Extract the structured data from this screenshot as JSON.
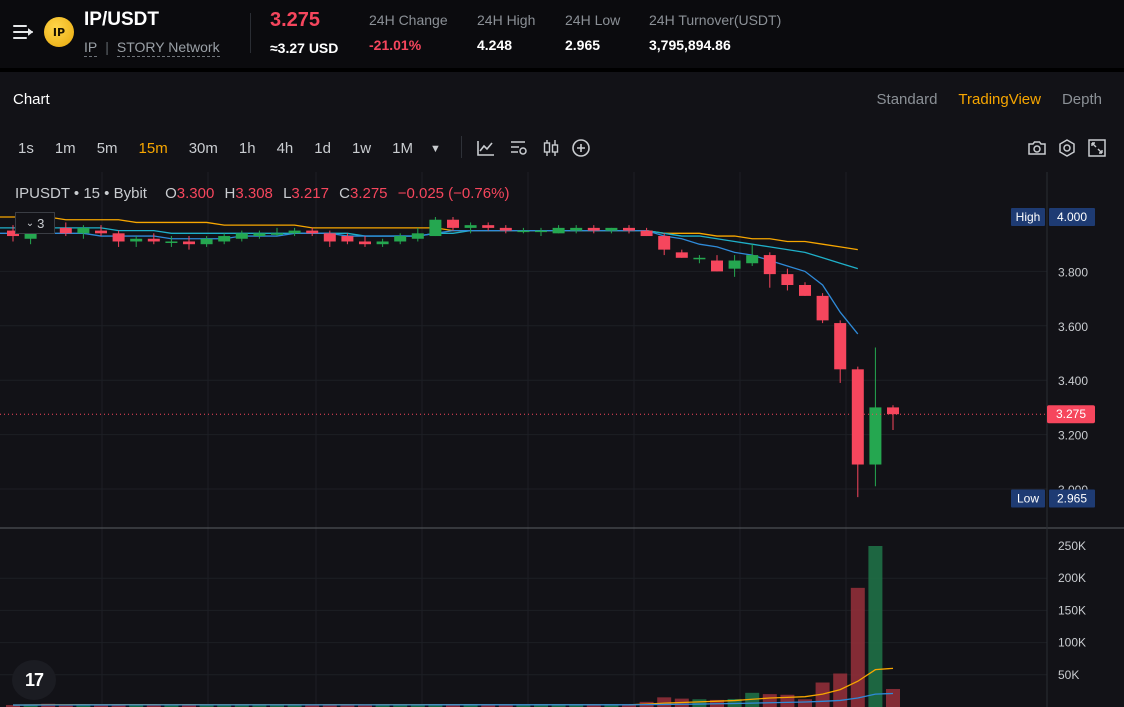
{
  "header": {
    "pair": "IP/USDT",
    "logo_text": "IP",
    "base": "IP",
    "separator": "|",
    "network": "STORY Network",
    "last_price": "3.275",
    "usd_price": "≈3.27 USD",
    "stats": [
      {
        "label": "24H Change",
        "value": "-21.01%",
        "negative": true
      },
      {
        "label": "24H High",
        "value": "4.248",
        "negative": false
      },
      {
        "label": "24H Low",
        "value": "2.965",
        "negative": false
      },
      {
        "label": "24H Turnover(USDT)",
        "value": "3,795,894.86",
        "negative": false
      }
    ]
  },
  "chart_panel": {
    "title": "Chart",
    "views": [
      "Standard",
      "TradingView",
      "Depth"
    ],
    "active_view": "TradingView",
    "intervals": [
      "1s",
      "1m",
      "5m",
      "15m",
      "30m",
      "1h",
      "4h",
      "1d",
      "1w",
      "1M"
    ],
    "active_interval": "15m",
    "tools": [
      "indicator-icon",
      "chart-settings-icon",
      "candle-style-icon",
      "add-icon",
      "camera-icon",
      "settings-hex-icon",
      "fullscreen-icon"
    ]
  },
  "legend": {
    "symbol": "IPUSDT • 15 • Bybit",
    "open_label": "O",
    "open": "3.300",
    "high_label": "H",
    "high": "3.308",
    "low_label": "L",
    "low": "3.217",
    "close_label": "C",
    "close": "3.275",
    "change": "−0.025 (−0.76%)"
  },
  "ma_toggle": {
    "label": "3"
  },
  "price_axis": {
    "ticks": [
      "4.000",
      "3.800",
      "3.600",
      "3.400",
      "3.200",
      "3.000"
    ],
    "high_tag": {
      "label": "High",
      "value": "4.000"
    },
    "low_tag": {
      "label": "Low",
      "value": "2.965"
    },
    "current": "3.275"
  },
  "volume_axis": {
    "ticks": [
      "250K",
      "200K",
      "150K",
      "100K",
      "50K"
    ]
  },
  "tv_logo": "17",
  "colors": {
    "up": "#25a750",
    "down": "#f6465d",
    "accent": "#f7a600",
    "ma_slow": "#f7a600",
    "ma_mid": "#1fb0c9",
    "ma_fast": "#2f8ad8"
  },
  "chart_data": {
    "type": "candlestick",
    "interval": "15m",
    "ylim": [
      2.95,
      4.1
    ],
    "volume_ylim": [
      0,
      250000
    ],
    "candles": [
      {
        "o": 3.95,
        "h": 3.97,
        "l": 3.91,
        "c": 3.93
      },
      {
        "o": 3.92,
        "h": 3.96,
        "l": 3.9,
        "c": 3.95
      },
      {
        "o": 3.99,
        "h": 4.0,
        "l": 3.94,
        "c": 3.96
      },
      {
        "o": 3.96,
        "h": 3.98,
        "l": 3.93,
        "c": 3.94
      },
      {
        "o": 3.94,
        "h": 3.97,
        "l": 3.92,
        "c": 3.96
      },
      {
        "o": 3.95,
        "h": 3.97,
        "l": 3.93,
        "c": 3.94
      },
      {
        "o": 3.94,
        "h": 3.95,
        "l": 3.89,
        "c": 3.91
      },
      {
        "o": 3.91,
        "h": 3.93,
        "l": 3.89,
        "c": 3.92
      },
      {
        "o": 3.92,
        "h": 3.94,
        "l": 3.9,
        "c": 3.91
      },
      {
        "o": 3.91,
        "h": 3.93,
        "l": 3.89,
        "c": 3.91
      },
      {
        "o": 3.91,
        "h": 3.93,
        "l": 3.88,
        "c": 3.9
      },
      {
        "o": 3.9,
        "h": 3.93,
        "l": 3.89,
        "c": 3.92
      },
      {
        "o": 3.91,
        "h": 3.94,
        "l": 3.9,
        "c": 3.93
      },
      {
        "o": 3.92,
        "h": 3.95,
        "l": 3.91,
        "c": 3.94
      },
      {
        "o": 3.93,
        "h": 3.95,
        "l": 3.92,
        "c": 3.94
      },
      {
        "o": 3.94,
        "h": 3.96,
        "l": 3.93,
        "c": 3.94
      },
      {
        "o": 3.94,
        "h": 3.96,
        "l": 3.93,
        "c": 3.95
      },
      {
        "o": 3.95,
        "h": 3.96,
        "l": 3.93,
        "c": 3.94
      },
      {
        "o": 3.94,
        "h": 3.95,
        "l": 3.89,
        "c": 3.91
      },
      {
        "o": 3.93,
        "h": 3.94,
        "l": 3.9,
        "c": 3.91
      },
      {
        "o": 3.91,
        "h": 3.93,
        "l": 3.89,
        "c": 3.9
      },
      {
        "o": 3.9,
        "h": 3.92,
        "l": 3.89,
        "c": 3.91
      },
      {
        "o": 3.91,
        "h": 3.94,
        "l": 3.9,
        "c": 3.93
      },
      {
        "o": 3.92,
        "h": 3.96,
        "l": 3.91,
        "c": 3.94
      },
      {
        "o": 3.93,
        "h": 4.0,
        "l": 3.93,
        "c": 3.99
      },
      {
        "o": 3.99,
        "h": 4.0,
        "l": 3.95,
        "c": 3.96
      },
      {
        "o": 3.96,
        "h": 3.98,
        "l": 3.94,
        "c": 3.97
      },
      {
        "o": 3.97,
        "h": 3.98,
        "l": 3.95,
        "c": 3.96
      },
      {
        "o": 3.96,
        "h": 3.97,
        "l": 3.94,
        "c": 3.95
      },
      {
        "o": 3.95,
        "h": 3.96,
        "l": 3.94,
        "c": 3.95
      },
      {
        "o": 3.95,
        "h": 3.96,
        "l": 3.93,
        "c": 3.95
      },
      {
        "o": 3.94,
        "h": 3.97,
        "l": 3.94,
        "c": 3.96
      },
      {
        "o": 3.95,
        "h": 3.97,
        "l": 3.94,
        "c": 3.96
      },
      {
        "o": 3.96,
        "h": 3.97,
        "l": 3.94,
        "c": 3.95
      },
      {
        "o": 3.95,
        "h": 3.96,
        "l": 3.94,
        "c": 3.96
      },
      {
        "o": 3.96,
        "h": 3.97,
        "l": 3.94,
        "c": 3.95
      },
      {
        "o": 3.95,
        "h": 3.96,
        "l": 3.93,
        "c": 3.93
      },
      {
        "o": 3.93,
        "h": 3.94,
        "l": 3.86,
        "c": 3.88
      },
      {
        "o": 3.87,
        "h": 3.88,
        "l": 3.85,
        "c": 3.85
      },
      {
        "o": 3.85,
        "h": 3.86,
        "l": 3.83,
        "c": 3.85
      },
      {
        "o": 3.84,
        "h": 3.86,
        "l": 3.8,
        "c": 3.8
      },
      {
        "o": 3.81,
        "h": 3.86,
        "l": 3.78,
        "c": 3.84
      },
      {
        "o": 3.83,
        "h": 3.9,
        "l": 3.82,
        "c": 3.86
      },
      {
        "o": 3.86,
        "h": 3.87,
        "l": 3.74,
        "c": 3.79
      },
      {
        "o": 3.79,
        "h": 3.81,
        "l": 3.73,
        "c": 3.75
      },
      {
        "o": 3.75,
        "h": 3.76,
        "l": 3.71,
        "c": 3.71
      },
      {
        "o": 3.71,
        "h": 3.72,
        "l": 3.61,
        "c": 3.62
      },
      {
        "o": 3.61,
        "h": 3.62,
        "l": 3.39,
        "c": 3.44
      },
      {
        "o": 3.44,
        "h": 3.45,
        "l": 2.97,
        "c": 3.09
      },
      {
        "o": 3.09,
        "h": 3.52,
        "l": 3.01,
        "c": 3.3
      },
      {
        "o": 3.3,
        "h": 3.308,
        "l": 3.217,
        "c": 3.275
      }
    ],
    "volume": [
      3000,
      4000,
      5000,
      3500,
      4000,
      3000,
      4500,
      4000,
      3500,
      3000,
      4000,
      3500,
      3000,
      4000,
      3500,
      3000,
      3500,
      3000,
      4000,
      3500,
      3000,
      3500,
      4000,
      3500,
      4500,
      4000,
      3500,
      3000,
      3500,
      3000,
      3500,
      4000,
      3000,
      3500,
      3000,
      4000,
      8000,
      15000,
      13000,
      12000,
      11000,
      12500,
      22000,
      20000,
      19000,
      12000,
      38000,
      52000,
      185000,
      250000,
      28000
    ],
    "ma": [
      {
        "name": "MA slow",
        "values": [
          4.0,
          4.0,
          4.0,
          3.99,
          3.99,
          3.99,
          3.99,
          3.98,
          3.98,
          3.98,
          3.98,
          3.98,
          3.97,
          3.97,
          3.97,
          3.97,
          3.97,
          3.96,
          3.96,
          3.96,
          3.96,
          3.96,
          3.96,
          3.96,
          3.96,
          3.95,
          3.95,
          3.95,
          3.95,
          3.95,
          3.95,
          3.95,
          3.95,
          3.95,
          3.95,
          3.95,
          3.95,
          3.94,
          3.94,
          3.94,
          3.93,
          3.93,
          3.92,
          3.92,
          3.91,
          3.91,
          3.9,
          3.89,
          3.88
        ]
      },
      {
        "name": "MA mid",
        "values": [
          3.96,
          3.96,
          3.96,
          3.96,
          3.96,
          3.96,
          3.95,
          3.95,
          3.95,
          3.94,
          3.94,
          3.94,
          3.94,
          3.94,
          3.94,
          3.94,
          3.94,
          3.94,
          3.94,
          3.94,
          3.93,
          3.93,
          3.93,
          3.93,
          3.94,
          3.94,
          3.95,
          3.95,
          3.95,
          3.95,
          3.95,
          3.95,
          3.95,
          3.95,
          3.95,
          3.95,
          3.95,
          3.94,
          3.93,
          3.93,
          3.92,
          3.91,
          3.9,
          3.89,
          3.88,
          3.87,
          3.85,
          3.83,
          3.81
        ]
      },
      {
        "name": "MA fast",
        "values": [
          3.94,
          3.94,
          3.94,
          3.94,
          3.94,
          3.93,
          3.93,
          3.93,
          3.93,
          3.92,
          3.92,
          3.92,
          3.92,
          3.93,
          3.93,
          3.93,
          3.94,
          3.94,
          3.94,
          3.93,
          3.93,
          3.93,
          3.93,
          3.93,
          3.94,
          3.95,
          3.95,
          3.95,
          3.95,
          3.95,
          3.95,
          3.95,
          3.95,
          3.95,
          3.95,
          3.95,
          3.95,
          3.93,
          3.92,
          3.9,
          3.89,
          3.87,
          3.86,
          3.84,
          3.82,
          3.8,
          3.75,
          3.65,
          3.57
        ]
      }
    ],
    "volume_ma": [
      {
        "name": "Vol MA fast",
        "values": [
          3000,
          3200,
          3400,
          3500,
          3600,
          3500,
          3600,
          3700,
          3600,
          3500,
          3600,
          3500,
          3400,
          3500,
          3500,
          3400,
          3400,
          3300,
          3500,
          3400,
          3300,
          3400,
          3500,
          3500,
          3600,
          3700,
          3600,
          3500,
          3400,
          3300,
          3400,
          3500,
          3400,
          3400,
          3300,
          3500,
          4500,
          6000,
          7000,
          8000,
          9000,
          10000,
          12000,
          14000,
          15000,
          16000,
          20000,
          27000,
          40000,
          58000,
          60000
        ]
      },
      {
        "name": "Vol MA slow",
        "values": [
          3000,
          3000,
          3100,
          3100,
          3200,
          3200,
          3200,
          3300,
          3300,
          3300,
          3300,
          3300,
          3300,
          3300,
          3300,
          3300,
          3300,
          3300,
          3300,
          3300,
          3300,
          3300,
          3300,
          3300,
          3400,
          3400,
          3400,
          3400,
          3400,
          3400,
          3400,
          3400,
          3400,
          3400,
          3400,
          3400,
          3700,
          4000,
          4300,
          4600,
          5000,
          5400,
          6000,
          6600,
          7200,
          7800,
          8800,
          10200,
          14000,
          20000,
          21000
        ]
      }
    ]
  }
}
